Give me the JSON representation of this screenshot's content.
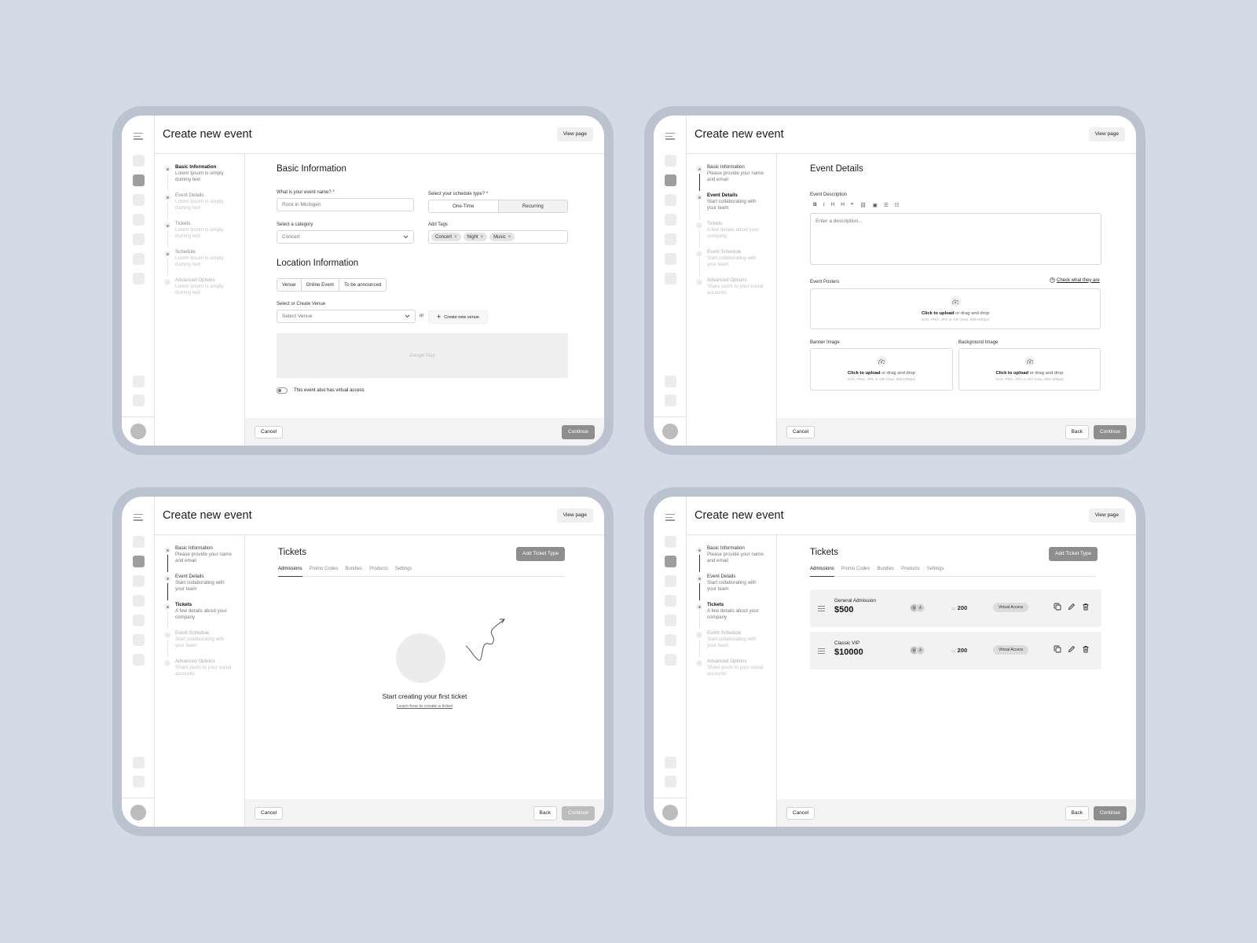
{
  "app_title": "Create new event",
  "view_page": "View page",
  "footer": {
    "cancel": "Cancel",
    "back": "Back",
    "continue": "Continue"
  },
  "steps_a": [
    {
      "title": "Basic Information",
      "desc": "Lorem Ipsum is simply dummy text"
    },
    {
      "title": "Event Details",
      "desc": "Lorem Ipsum is simply dummy text"
    },
    {
      "title": "Tickets",
      "desc": "Lorem Ipsum is simply dummy text"
    },
    {
      "title": "Schedule",
      "desc": "Lorem Ipsum is simply dummy text"
    },
    {
      "title": "Advanced Options",
      "desc": "Lorem Ipsum is simply dummy text"
    }
  ],
  "steps_b": [
    {
      "title": "Basic Information",
      "desc": "Please provide your name and email"
    },
    {
      "title": "Event Details",
      "desc": "Start collaborating with your team"
    },
    {
      "title": "Tickets",
      "desc": "A few details about your company"
    },
    {
      "title": "Event Schedule",
      "desc": "Start collaborating with your team"
    },
    {
      "title": "Advanced Options",
      "desc": "Share posts to your social accounts"
    }
  ],
  "basic": {
    "heading": "Basic Information",
    "name_label": "What is your event name? *",
    "name_value": "Rock in Michigen",
    "schedule_label": "Select your schedule type? *",
    "schedule_options": [
      "One-Time",
      "Recurring"
    ],
    "category_label": "Select a category",
    "category_value": "Concert",
    "tags_label": "Add Tags",
    "tags": [
      "Concert",
      "Night",
      "Music"
    ],
    "location_heading": "Location Information",
    "location_options": [
      "Venue",
      "Online Event",
      "To be announced"
    ],
    "venue_label": "Select or Create Venue",
    "venue_placeholder": "Select Venue",
    "or": "or",
    "create_venue": "Create new venue",
    "map_label": "Google Map",
    "virtual_toggle": "This event also has virtual access"
  },
  "details": {
    "heading": "Event Details",
    "desc_label": "Event Description",
    "format_tools": [
      "B",
      "I",
      "H",
      "H",
      "❞",
      "⛓",
      "▣",
      "☰",
      "☷"
    ],
    "desc_placeholder": "Enter a description...",
    "posters_label": "Event Posters",
    "check_link": "Check what they are",
    "banner_label": "Banner Image",
    "background_label": "Background Image",
    "upload_click": "Click to upload",
    "upload_rest": "or drag and drop",
    "upload_hint": "SVG, PNG, JPG or GIF (max. 800×400px)"
  },
  "tickets": {
    "heading": "Tickets",
    "add_button": "Add Ticket Type",
    "tabs": [
      "Admissions",
      "Promo Codes",
      "Bundles",
      "Products",
      "Settings"
    ],
    "empty_title": "Start creating your first ticket",
    "empty_link": "Learn how to create a ticket",
    "items": [
      {
        "name": "General Admission",
        "price": "$500",
        "qty": "200",
        "badge": "Virtual Access"
      },
      {
        "name": "Classic VIP",
        "price": "$10000",
        "qty": "200",
        "badge": "Virtual Access"
      }
    ]
  }
}
